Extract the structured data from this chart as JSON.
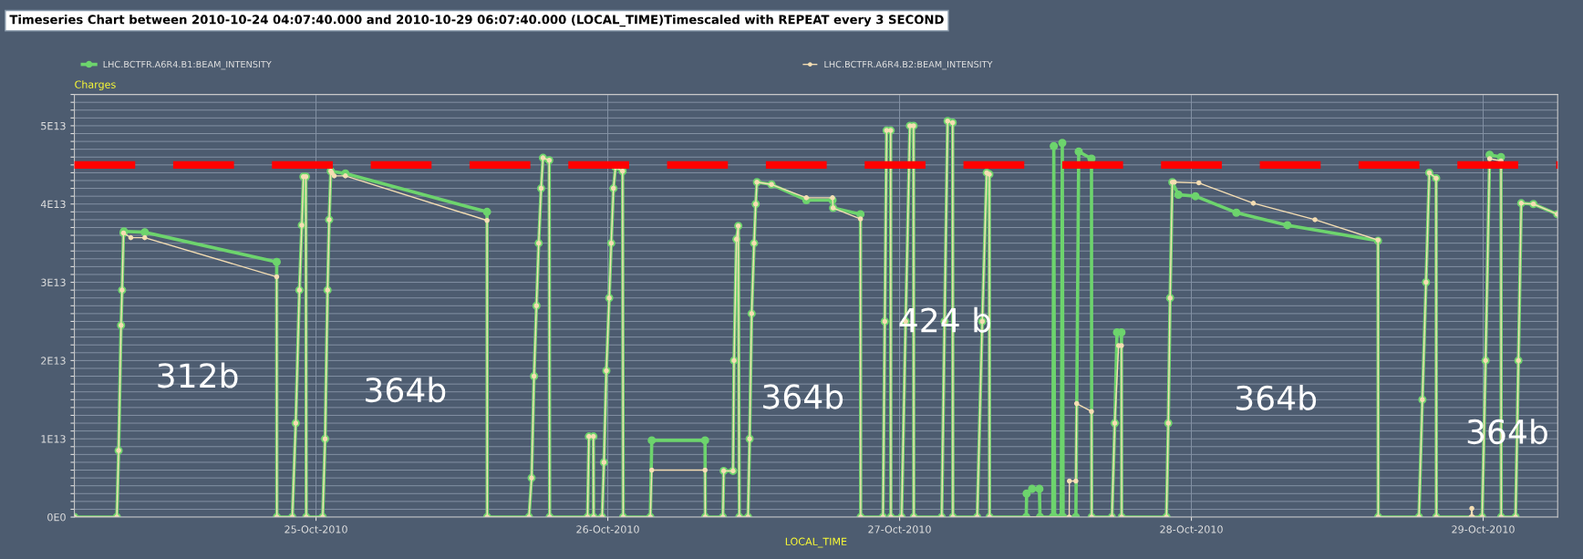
{
  "chart_data": {
    "type": "line",
    "title": "Timeseries Chart between 2010-10-24 04:07:40.000 and 2010-10-29 06:07:40.000 (LOCAL_TIME)Timescaled with REPEAT every 3 SECOND",
    "xlabel": "LOCAL_TIME",
    "ylabel": "Charges",
    "marker": "circle",
    "line_style": "solid",
    "grid": true,
    "legend": "top",
    "xlim": [
      "2010-10-24T04:07:40",
      "2010-10-29T06:07:40"
    ],
    "xticks": [
      {
        "value": "2010-10-25",
        "label": "25-Oct-2010"
      },
      {
        "value": "2010-10-26",
        "label": "26-Oct-2010"
      },
      {
        "value": "2010-10-27",
        "label": "27-Oct-2010"
      },
      {
        "value": "2010-10-28",
        "label": "28-Oct-2010"
      },
      {
        "value": "2010-10-29",
        "label": "29-Oct-2010"
      }
    ],
    "ylim": [
      0,
      54000000000000.0
    ],
    "yticks": [
      {
        "value": 0,
        "label": "0E0"
      },
      {
        "value": 1000000000000.0,
        "label": null
      },
      {
        "value": 2000000000000.0,
        "label": null
      },
      {
        "value": 3000000000000.0,
        "label": null
      },
      {
        "value": 4000000000000.0,
        "label": null
      },
      {
        "value": 5000000000000.0,
        "label": null
      },
      {
        "value": 6000000000000.0,
        "label": null
      },
      {
        "value": 7000000000000.0,
        "label": null
      },
      {
        "value": 8000000000000.0,
        "label": null
      },
      {
        "value": 9000000000000.0,
        "label": null
      },
      {
        "value": 10000000000000.0,
        "label": "1E13"
      },
      {
        "value": 11000000000000.0,
        "label": null
      },
      {
        "value": 12000000000000.0,
        "label": null
      },
      {
        "value": 13000000000000.0,
        "label": null
      },
      {
        "value": 14000000000000.0,
        "label": null
      },
      {
        "value": 15000000000000.0,
        "label": null
      },
      {
        "value": 16000000000000.0,
        "label": null
      },
      {
        "value": 17000000000000.0,
        "label": null
      },
      {
        "value": 18000000000000.0,
        "label": null
      },
      {
        "value": 19000000000000.0,
        "label": null
      },
      {
        "value": 20000000000000.0,
        "label": "2E13"
      },
      {
        "value": 21000000000000.0,
        "label": null
      },
      {
        "value": 22000000000000.0,
        "label": null
      },
      {
        "value": 23000000000000.0,
        "label": null
      },
      {
        "value": 24000000000000.0,
        "label": null
      },
      {
        "value": 25000000000000.0,
        "label": null
      },
      {
        "value": 26000000000000.0,
        "label": null
      },
      {
        "value": 27000000000000.0,
        "label": null
      },
      {
        "value": 28000000000000.0,
        "label": null
      },
      {
        "value": 29000000000000.0,
        "label": null
      },
      {
        "value": 30000000000000.0,
        "label": "3E13"
      },
      {
        "value": 31000000000000.0,
        "label": null
      },
      {
        "value": 32000000000000.0,
        "label": null
      },
      {
        "value": 33000000000000.0,
        "label": null
      },
      {
        "value": 34000000000000.0,
        "label": null
      },
      {
        "value": 35000000000000.0,
        "label": null
      },
      {
        "value": 36000000000000.0,
        "label": null
      },
      {
        "value": 37000000000000.0,
        "label": null
      },
      {
        "value": 38000000000000.0,
        "label": null
      },
      {
        "value": 39000000000000.0,
        "label": null
      },
      {
        "value": 40000000000000.0,
        "label": "4E13"
      },
      {
        "value": 41000000000000.0,
        "label": null
      },
      {
        "value": 42000000000000.0,
        "label": null
      },
      {
        "value": 43000000000000.0,
        "label": null
      },
      {
        "value": 44000000000000.0,
        "label": null
      },
      {
        "value": 45000000000000.0,
        "label": null
      },
      {
        "value": 46000000000000.0,
        "label": null
      },
      {
        "value": 47000000000000.0,
        "label": null
      },
      {
        "value": 48000000000000.0,
        "label": null
      },
      {
        "value": 49000000000000.0,
        "label": null
      },
      {
        "value": 50000000000000.0,
        "label": "5E13"
      },
      {
        "value": 51000000000000.0,
        "label": null
      },
      {
        "value": 52000000000000.0,
        "label": null
      },
      {
        "value": 53000000000000.0,
        "label": null
      },
      {
        "value": 54000000000000.0,
        "label": null
      }
    ],
    "ref_lines": [
      {
        "axis": "y",
        "value": 45000000000000.0,
        "color": "#ff0000",
        "line_style": "dashed"
      }
    ],
    "annotations": [
      "312b",
      "364b",
      "364b",
      "424 b",
      "364b",
      "364b"
    ],
    "series": [
      {
        "name": "LHC.BCTFR.A6R4.B1:BEAM_INTENSITY",
        "color": "#6dd46d",
        "x": [
          "2010-10-24T04:08",
          "2010-10-24T07:37",
          "2010-10-24T07:46",
          "2010-10-24T07:58",
          "2010-10-24T08:03",
          "2010-10-24T08:10",
          "2010-10-24T08:12",
          "2010-10-24T09:55",
          "2010-10-24T20:46",
          "2010-10-24T20:47",
          "2010-10-24T22:03",
          "2010-10-24T22:20",
          "2010-10-24T22:38",
          "2010-10-24T22:50",
          "2010-10-24T22:58",
          "2010-10-24T23:10",
          "2010-10-24T23:12",
          "2010-10-25T00:33",
          "2010-10-25T00:45",
          "2010-10-25T00:57",
          "2010-10-25T01:05",
          "2010-10-25T01:13",
          "2010-10-25T02:25",
          "2010-10-25T14:04",
          "2010-10-25T14:05",
          "2010-10-25T17:31",
          "2010-10-25T17:44",
          "2010-10-25T17:56",
          "2010-10-25T18:08",
          "2010-10-25T18:19",
          "2010-10-25T18:31",
          "2010-10-25T18:40",
          "2010-10-25T19:11",
          "2010-10-25T19:13",
          "2010-10-25T22:20",
          "2010-10-25T22:27",
          "2010-10-25T22:49",
          "2010-10-25T22:50",
          "2010-10-25T23:32",
          "2010-10-25T23:41",
          "2010-10-25T23:53",
          "2010-10-26T00:07",
          "2010-10-26T00:17",
          "2010-10-26T00:28",
          "2010-10-26T00:38",
          "2010-10-26T01:13",
          "2010-10-26T01:16",
          "2010-10-26T03:30",
          "2010-10-26T03:37",
          "2010-10-26T08:00",
          "2010-10-26T08:01",
          "2010-10-26T09:28",
          "2010-10-26T09:32",
          "2010-10-26T10:18",
          "2010-10-26T10:23",
          "2010-10-26T10:35",
          "2010-10-26T10:44",
          "2010-10-26T10:49",
          "2010-10-26T11:32",
          "2010-10-26T11:40",
          "2010-10-26T11:50",
          "2010-10-26T12:02",
          "2010-10-26T12:10",
          "2010-10-26T12:16",
          "2010-10-26T13:28",
          "2010-10-26T16:20",
          "2010-10-26T18:29",
          "2010-10-26T18:32",
          "2010-10-26T20:47",
          "2010-10-26T20:48",
          "2010-10-26T22:38",
          "2010-10-26T22:47",
          "2010-10-26T22:56",
          "2010-10-26T23:16",
          "2010-10-26T23:17",
          "2010-10-27T00:10",
          "2010-10-27T00:30",
          "2010-10-27T00:51",
          "2010-10-27T01:09",
          "2010-10-27T01:10",
          "2010-10-27T03:28",
          "2010-10-27T03:42",
          "2010-10-27T03:57",
          "2010-10-27T04:22",
          "2010-10-27T04:23",
          "2010-10-27T06:23",
          "2010-10-27T06:48",
          "2010-10-27T07:10",
          "2010-10-27T07:23",
          "2010-10-27T07:24",
          "2010-10-27T10:25",
          "2010-10-27T10:27",
          "2010-10-27T10:54",
          "2010-10-27T11:30",
          "2010-10-27T11:33",
          "2010-10-27T12:36",
          "2010-10-27T12:41",
          "2010-10-27T12:45",
          "2010-10-27T13:18",
          "2010-10-27T13:23",
          "2010-10-27T13:27",
          "2010-10-27T14:30",
          "2010-10-27T14:44",
          "2010-10-27T15:47",
          "2010-10-27T15:48",
          "2010-10-27T17:28",
          "2010-10-27T17:42",
          "2010-10-27T17:53",
          "2010-10-27T18:15",
          "2010-10-27T18:16",
          "2010-10-27T21:57",
          "2010-10-27T22:06",
          "2010-10-27T22:15",
          "2010-10-27T22:26",
          "2010-10-27T22:56",
          "2010-10-28T00:20",
          "2010-10-28T03:42",
          "2010-10-28T07:54",
          "2010-10-28T15:21",
          "2010-10-28T15:22",
          "2010-10-28T18:43",
          "2010-10-28T19:00",
          "2010-10-28T19:18",
          "2010-10-28T19:34",
          "2010-10-28T20:08",
          "2010-10-28T20:09",
          "2010-10-28T23:55",
          "2010-10-29T00:12",
          "2010-10-29T00:32",
          "2010-10-29T01:28",
          "2010-10-29T01:29",
          "2010-10-29T02:40",
          "2010-10-29T02:54",
          "2010-10-29T03:08",
          "2010-10-29T04:08",
          "2010-10-29T06:06"
        ],
        "values": [
          0,
          0,
          8500000000000.0,
          24500000000000.0,
          29000000000000.0,
          36300000000000.0,
          36500000000000.0,
          36400000000000.0,
          32600000000000.0,
          0,
          0,
          12000000000000.0,
          29000000000000.0,
          37300000000000.0,
          43500000000000.0,
          43500000000000.0,
          0,
          0,
          10000000000000.0,
          29000000000000.0,
          38000000000000.0,
          44200000000000.0,
          43900000000000.0,
          39000000000000.0,
          0,
          0,
          5000000000000.0,
          18000000000000.0,
          27000000000000.0,
          35000000000000.0,
          42000000000000.0,
          45900000000000.0,
          45600000000000.0,
          0,
          0,
          10300000000000.0,
          10300000000000.0,
          0,
          0,
          7000000000000.0,
          18700000000000.0,
          28000000000000.0,
          35000000000000.0,
          42000000000000.0,
          44700000000000.0,
          44200000000000.0,
          0,
          0,
          9800000000000.0,
          9800000000000.0,
          0,
          0,
          5900000000000.0,
          5900000000000.0,
          20000000000000.0,
          35500000000000.0,
          37200000000000.0,
          0,
          0,
          10000000000000.0,
          26000000000000.0,
          35000000000000.0,
          40000000000000.0,
          42800000000000.0,
          42500000000000.0,
          40500000000000.0,
          40500000000000.0,
          39500000000000.0,
          38700000000000.0,
          0,
          0,
          25000000000000.0,
          49400000000000.0,
          49400000000000.0,
          0,
          0,
          25000000000000.0,
          50000000000000.0,
          50000000000000.0,
          0,
          0,
          25000000000000.0,
          50600000000000.0,
          50400000000000.0,
          0,
          0,
          25000000000000.0,
          44000000000000.0,
          43800000000000.0,
          0,
          0,
          3000000000000.0,
          3600000000000.0,
          3600000000000.0,
          0,
          0,
          47400000000000.0,
          0,
          0,
          47800000000000.0,
          0,
          0,
          46700000000000.0,
          45800000000000.0,
          0,
          0,
          12000000000000.0,
          23600000000000.0,
          23600000000000.0,
          0,
          0,
          12000000000000.0,
          28000000000000.0,
          42800000000000.0,
          41200000000000.0,
          41000000000000.0,
          38900000000000.0,
          37300000000000.0,
          35300000000000.0,
          0,
          0,
          15000000000000.0,
          30000000000000.0,
          44000000000000.0,
          43300000000000.0,
          0,
          0,
          20000000000000.0,
          46300000000000.0,
          46000000000000.0,
          0,
          0,
          20000000000000.0,
          40100000000000.0,
          40000000000000.0,
          38700000000000.0
        ]
      },
      {
        "name": "LHC.BCTFR.A6R4.B2:BEAM_INTENSITY",
        "color": "#f5deb3",
        "x": [
          "2010-10-24T04:08",
          "2010-10-24T07:37",
          "2010-10-24T07:46",
          "2010-10-24T07:58",
          "2010-10-24T08:03",
          "2010-10-24T08:10",
          "2010-10-24T08:46",
          "2010-10-24T09:55",
          "2010-10-24T20:46",
          "2010-10-24T20:47",
          "2010-10-24T22:03",
          "2010-10-24T22:20",
          "2010-10-24T22:38",
          "2010-10-24T22:50",
          "2010-10-24T22:58",
          "2010-10-24T23:10",
          "2010-10-24T23:12",
          "2010-10-25T00:33",
          "2010-10-25T00:45",
          "2010-10-25T00:57",
          "2010-10-25T01:05",
          "2010-10-25T01:13",
          "2010-10-25T01:18",
          "2010-10-25T01:30",
          "2010-10-25T02:25",
          "2010-10-25T14:04",
          "2010-10-25T14:05",
          "2010-10-25T17:31",
          "2010-10-25T17:44",
          "2010-10-25T17:56",
          "2010-10-25T18:08",
          "2010-10-25T18:19",
          "2010-10-25T18:31",
          "2010-10-25T18:40",
          "2010-10-25T19:11",
          "2010-10-25T19:13",
          "2010-10-25T22:20",
          "2010-10-25T22:27",
          "2010-10-25T22:49",
          "2010-10-25T22:50",
          "2010-10-25T23:32",
          "2010-10-25T23:41",
          "2010-10-25T23:53",
          "2010-10-26T00:07",
          "2010-10-26T00:17",
          "2010-10-26T00:28",
          "2010-10-26T00:38",
          "2010-10-26T01:13",
          "2010-10-26T01:16",
          "2010-10-26T03:30",
          "2010-10-26T03:37",
          "2010-10-26T08:00",
          "2010-10-26T08:01",
          "2010-10-26T09:28",
          "2010-10-26T09:32",
          "2010-10-26T10:18",
          "2010-10-26T10:23",
          "2010-10-26T10:35",
          "2010-10-26T10:44",
          "2010-10-26T10:49",
          "2010-10-26T11:32",
          "2010-10-26T11:40",
          "2010-10-26T11:50",
          "2010-10-26T12:02",
          "2010-10-26T12:10",
          "2010-10-26T12:16",
          "2010-10-26T13:28",
          "2010-10-26T16:20",
          "2010-10-26T18:29",
          "2010-10-26T18:32",
          "2010-10-26T20:47",
          "2010-10-26T20:48",
          "2010-10-26T22:38",
          "2010-10-26T22:47",
          "2010-10-26T22:56",
          "2010-10-26T23:16",
          "2010-10-26T23:17",
          "2010-10-27T00:10",
          "2010-10-27T00:30",
          "2010-10-27T00:51",
          "2010-10-27T01:09",
          "2010-10-27T01:10",
          "2010-10-27T03:28",
          "2010-10-27T03:42",
          "2010-10-27T03:57",
          "2010-10-27T04:22",
          "2010-10-27T04:23",
          "2010-10-27T06:23",
          "2010-10-27T06:48",
          "2010-10-27T07:10",
          "2010-10-27T07:23",
          "2010-10-27T07:24",
          "2010-10-27T13:57",
          "2010-10-27T13:58",
          "2010-10-27T14:30",
          "2010-10-27T14:34",
          "2010-10-27T15:47",
          "2010-10-27T15:48",
          "2010-10-27T17:28",
          "2010-10-27T17:42",
          "2010-10-27T18:01",
          "2010-10-27T18:15",
          "2010-10-27T18:16",
          "2010-10-27T21:57",
          "2010-10-27T22:06",
          "2010-10-27T22:15",
          "2010-10-27T22:26",
          "2010-10-27T22:36",
          "2010-10-28T00:37",
          "2010-10-28T05:06",
          "2010-10-28T10:10",
          "2010-10-28T15:21",
          "2010-10-28T15:22",
          "2010-10-28T18:43",
          "2010-10-28T19:00",
          "2010-10-28T19:18",
          "2010-10-28T19:34",
          "2010-10-28T20:08",
          "2010-10-28T20:09",
          "2010-10-28T23:00",
          "2010-10-28T23:04",
          "2010-10-28T23:08",
          "2010-10-28T23:55",
          "2010-10-29T00:12",
          "2010-10-29T00:32",
          "2010-10-29T01:28",
          "2010-10-29T01:29",
          "2010-10-29T02:40",
          "2010-10-29T02:54",
          "2010-10-29T03:08",
          "2010-10-29T04:08",
          "2010-10-29T06:06"
        ],
        "values": [
          0,
          0,
          8500000000000.0,
          24500000000000.0,
          29000000000000.0,
          36300000000000.0,
          35700000000000.0,
          35700000000000.0,
          30700000000000.0,
          0,
          0,
          12000000000000.0,
          29000000000000.0,
          37300000000000.0,
          43500000000000.0,
          43500000000000.0,
          0,
          0,
          10000000000000.0,
          29000000000000.0,
          38000000000000.0,
          44200000000000.0,
          44000000000000.0,
          43600000000000.0,
          43600000000000.0,
          37900000000000.0,
          0,
          0,
          5000000000000.0,
          18000000000000.0,
          27000000000000.0,
          35000000000000.0,
          42000000000000.0,
          45900000000000.0,
          45600000000000.0,
          0,
          0,
          10300000000000.0,
          10300000000000.0,
          0,
          0,
          7000000000000.0,
          18700000000000.0,
          28000000000000.0,
          35000000000000.0,
          42000000000000.0,
          44700000000000.0,
          44200000000000.0,
          0,
          0,
          6000000000000.0,
          6000000000000.0,
          0,
          0,
          5900000000000.0,
          5900000000000.0,
          20000000000000.0,
          35500000000000.0,
          37200000000000.0,
          0,
          0,
          10000000000000.0,
          26000000000000.0,
          35000000000000.0,
          40000000000000.0,
          42800000000000.0,
          42500000000000.0,
          40800000000000.0,
          40800000000000.0,
          39500000000000.0,
          38100000000000.0,
          0,
          0,
          25000000000000.0,
          49400000000000.0,
          49400000000000.0,
          0,
          0,
          25000000000000.0,
          50000000000000.0,
          50000000000000.0,
          0,
          0,
          25000000000000.0,
          50600000000000.0,
          50400000000000.0,
          0,
          0,
          25000000000000.0,
          44000000000000.0,
          43800000000000.0,
          0,
          0,
          4600000000000.0,
          4600000000000.0,
          14500000000000.0,
          13500000000000.0,
          0,
          0,
          12000000000000.0,
          21900000000000.0,
          21900000000000.0,
          0,
          0,
          12000000000000.0,
          28000000000000.0,
          42800000000000.0,
          42800000000000.0,
          42700000000000.0,
          40100000000000.0,
          38000000000000.0,
          35400000000000.0,
          0,
          0,
          15000000000000.0,
          30000000000000.0,
          44000000000000.0,
          43300000000000.0,
          0,
          0,
          1100000000000.0,
          0,
          0,
          20000000000000.0,
          45800000000000.0,
          45500000000000.0,
          0,
          0,
          20000000000000.0,
          40100000000000.0,
          40000000000000.0,
          38700000000000.0
        ]
      }
    ]
  }
}
